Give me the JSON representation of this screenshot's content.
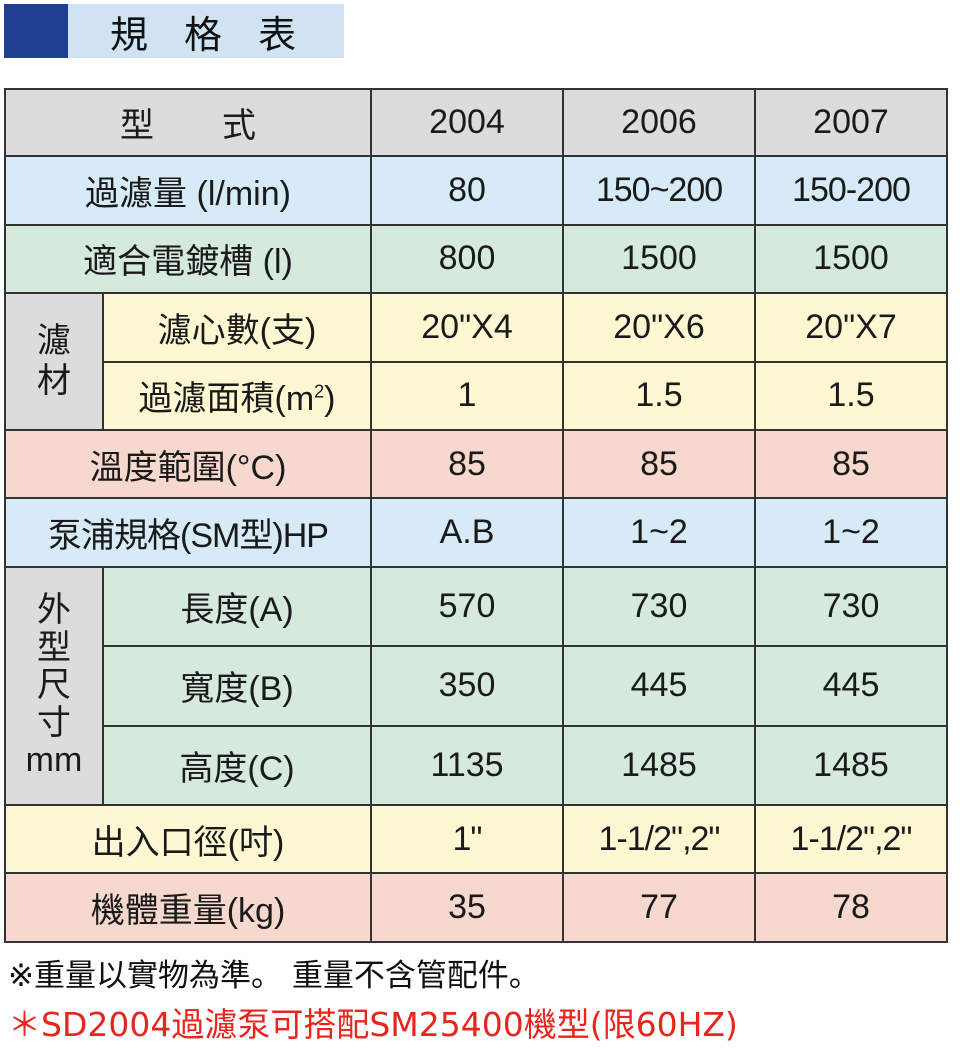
{
  "title": "規 格 表",
  "header": {
    "label": "型　　式",
    "models": [
      "2004",
      "2006",
      "2007"
    ]
  },
  "rows": {
    "flow": {
      "label": "過濾量 (l/min)",
      "values": [
        "80",
        "150~200",
        "150-200"
      ]
    },
    "tank": {
      "label": "適合電鍍槽 (l)",
      "values": [
        "800",
        "1500",
        "1500"
      ]
    },
    "media_group": "濾材",
    "cartridges": {
      "label": "濾心數(支)",
      "values": [
        "20\"X4",
        "20\"X6",
        "20\"X7"
      ]
    },
    "area": {
      "label": "過濾面積(m",
      "sup": "2",
      "label_end": ")",
      "values": [
        "1",
        "1.5",
        "1.5"
      ]
    },
    "temp": {
      "label": "溫度範圍(°C)",
      "values": [
        "85",
        "85",
        "85"
      ]
    },
    "pump": {
      "label": "泵浦規格(SM型)HP",
      "values": [
        "A.B",
        "1~2",
        "1~2"
      ]
    },
    "dim_group": [
      "外",
      "型",
      "尺",
      "寸",
      "mm"
    ],
    "length": {
      "label": "長度(A)",
      "values": [
        "570",
        "730",
        "730"
      ]
    },
    "width": {
      "label": "寬度(B)",
      "values": [
        "350",
        "445",
        "445"
      ]
    },
    "height": {
      "label": "高度(C)",
      "values": [
        "1135",
        "1485",
        "1485"
      ]
    },
    "port": {
      "label": "出入口徑(吋)",
      "values": [
        "1\"",
        "1-1/2\",2\"",
        "1-1/2\",2\""
      ]
    },
    "weight": {
      "label": "機體重量(kg)",
      "values": [
        "35",
        "77",
        "78"
      ]
    }
  },
  "notes": {
    "weight_note": "※重量以實物為準。 重量不含管配件。",
    "pump_note": "＊SD2004過濾泵可搭配SM25400機型(限60HZ)"
  },
  "colors": {
    "title_block": "#1f3f93",
    "title_bg": "#cfe3f3",
    "gray": "#dcdcdc",
    "blue": "#d6ebf7",
    "green": "#d5e9dc",
    "yellow": "#fdf7d2",
    "pink": "#f7d8ce",
    "note_red": "#e8251d"
  }
}
